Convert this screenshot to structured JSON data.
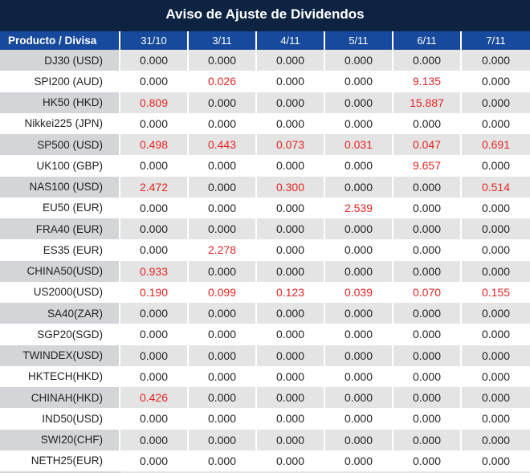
{
  "title": "Aviso de Ajuste de Dividendos",
  "colors": {
    "navy": "#0e2342",
    "blue": "#17499c",
    "rowGray": "#e4e4e5",
    "labelGray": "#d3d5d8",
    "red": "#e42522",
    "text": "#222222"
  },
  "chart_data": {
    "type": "table",
    "title": "Aviso de Ajuste de Dividendos",
    "columns": [
      "Producto / Divisa",
      "31/10",
      "3/11",
      "4/11",
      "5/11",
      "6/11",
      "7/11"
    ],
    "rows": [
      {
        "label": "DJ30 (USD)",
        "values": [
          "0.000",
          "0.000",
          "0.000",
          "0.000",
          "0.000",
          "0.000"
        ],
        "red": [
          false,
          false,
          false,
          false,
          false,
          false
        ]
      },
      {
        "label": "SPI200 (AUD)",
        "values": [
          "0.000",
          "0.026",
          "0.000",
          "0.000",
          "9.135",
          "0.000"
        ],
        "red": [
          false,
          true,
          false,
          false,
          true,
          false
        ]
      },
      {
        "label": "HK50 (HKD)",
        "values": [
          "0.809",
          "0.000",
          "0.000",
          "0.000",
          "15.887",
          "0.000"
        ],
        "red": [
          true,
          false,
          false,
          false,
          true,
          false
        ]
      },
      {
        "label": "Nikkei225 (JPN)",
        "values": [
          "0.000",
          "0.000",
          "0.000",
          "0.000",
          "0.000",
          "0.000"
        ],
        "red": [
          false,
          false,
          false,
          false,
          false,
          false
        ]
      },
      {
        "label": "SP500 (USD)",
        "values": [
          "0.498",
          "0.443",
          "0.073",
          "0.031",
          "0.047",
          "0.691"
        ],
        "red": [
          true,
          true,
          true,
          true,
          true,
          true
        ]
      },
      {
        "label": "UK100 (GBP)",
        "values": [
          "0.000",
          "0.000",
          "0.000",
          "0.000",
          "9.657",
          "0.000"
        ],
        "red": [
          false,
          false,
          false,
          false,
          true,
          false
        ]
      },
      {
        "label": "NAS100 (USD)",
        "values": [
          "2.472",
          "0.000",
          "0.300",
          "0.000",
          "0.000",
          "0.514"
        ],
        "red": [
          true,
          false,
          true,
          false,
          false,
          true
        ]
      },
      {
        "label": "EU50 (EUR)",
        "values": [
          "0.000",
          "0.000",
          "0.000",
          "2.539",
          "0.000",
          "0.000"
        ],
        "red": [
          false,
          false,
          false,
          true,
          false,
          false
        ]
      },
      {
        "label": "FRA40 (EUR)",
        "values": [
          "0.000",
          "0.000",
          "0.000",
          "0.000",
          "0.000",
          "0.000"
        ],
        "red": [
          false,
          false,
          false,
          false,
          false,
          false
        ]
      },
      {
        "label": "ES35 (EUR)",
        "values": [
          "0.000",
          "2.278",
          "0.000",
          "0.000",
          "0.000",
          "0.000"
        ],
        "red": [
          false,
          true,
          false,
          false,
          false,
          false
        ]
      },
      {
        "label": "CHINA50(USD)",
        "values": [
          "0.933",
          "0.000",
          "0.000",
          "0.000",
          "0.000",
          "0.000"
        ],
        "red": [
          true,
          false,
          false,
          false,
          false,
          false
        ]
      },
      {
        "label": "US2000(USD)",
        "values": [
          "0.190",
          "0.099",
          "0.123",
          "0.039",
          "0.070",
          "0.155"
        ],
        "red": [
          true,
          true,
          true,
          true,
          true,
          true
        ]
      },
      {
        "label": "SA40(ZAR)",
        "values": [
          "0.000",
          "0.000",
          "0.000",
          "0.000",
          "0.000",
          "0.000"
        ],
        "red": [
          false,
          false,
          false,
          false,
          false,
          false
        ]
      },
      {
        "label": "SGP20(SGD)",
        "values": [
          "0.000",
          "0.000",
          "0.000",
          "0.000",
          "0.000",
          "0.000"
        ],
        "red": [
          false,
          false,
          false,
          false,
          false,
          false
        ]
      },
      {
        "label": "TWINDEX(USD)",
        "values": [
          "0.000",
          "0.000",
          "0.000",
          "0.000",
          "0.000",
          "0.000"
        ],
        "red": [
          false,
          false,
          false,
          false,
          false,
          false
        ]
      },
      {
        "label": "HKTECH(HKD)",
        "values": [
          "0.000",
          "0.000",
          "0.000",
          "0.000",
          "0.000",
          "0.000"
        ],
        "red": [
          false,
          false,
          false,
          false,
          false,
          false
        ]
      },
      {
        "label": "CHINAH(HKD)",
        "values": [
          "0.426",
          "0.000",
          "0.000",
          "0.000",
          "0.000",
          "0.000"
        ],
        "red": [
          true,
          false,
          false,
          false,
          false,
          false
        ]
      },
      {
        "label": "IND50(USD)",
        "values": [
          "0.000",
          "0.000",
          "0.000",
          "0.000",
          "0.000",
          "0.000"
        ],
        "red": [
          false,
          false,
          false,
          false,
          false,
          false
        ]
      },
      {
        "label": "SWI20(CHF)",
        "values": [
          "0.000",
          "0.000",
          "0.000",
          "0.000",
          "0.000",
          "0.000"
        ],
        "red": [
          false,
          false,
          false,
          false,
          false,
          false
        ]
      },
      {
        "label": "NETH25(EUR)",
        "values": [
          "0.000",
          "0.000",
          "0.000",
          "0.000",
          "0.000",
          "0.000"
        ],
        "red": [
          false,
          false,
          false,
          false,
          false,
          false
        ]
      }
    ]
  }
}
